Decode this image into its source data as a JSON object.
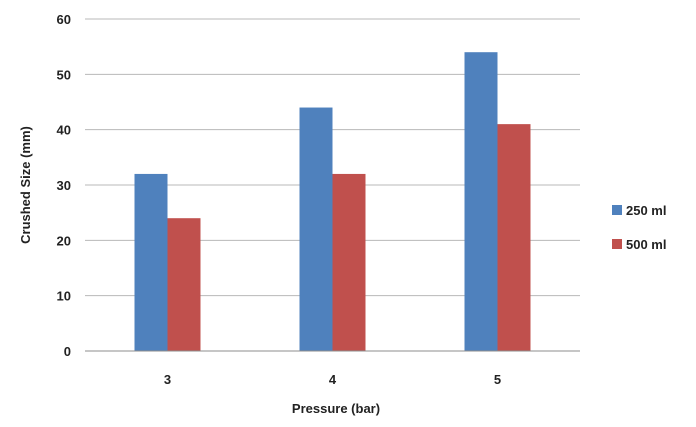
{
  "chart_data": {
    "type": "bar",
    "title": "",
    "xlabel": "Pressure (bar)",
    "ylabel": "Crushed  Size (mm)",
    "categories": [
      "3",
      "4",
      "5"
    ],
    "ylim": [
      0,
      60
    ],
    "yticks": [
      "0",
      "10",
      "20",
      "30",
      "40",
      "50",
      "60"
    ],
    "grid": true,
    "legend_position": "right",
    "series": [
      {
        "name": "250 ml",
        "color": "#4f81bd",
        "values": [
          32,
          44,
          54
        ]
      },
      {
        "name": "500 ml",
        "color": "#c0504d",
        "values": [
          24,
          32,
          41
        ]
      }
    ]
  }
}
